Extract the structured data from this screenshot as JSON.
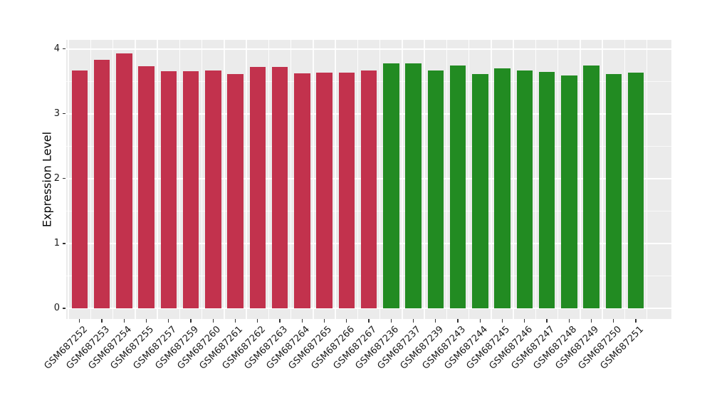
{
  "chart_data": {
    "type": "bar",
    "ylabel": "Expression Level",
    "xlabel": "",
    "ylim": [
      -0.165,
      4.138
    ],
    "yticks": [
      0,
      1,
      2,
      3,
      4
    ],
    "minor_yticks": [
      0.5,
      1.5,
      2.5,
      3.5
    ],
    "grid": "white major and minor gridlines on gray panel, vertical lines between categories",
    "legend": "none",
    "bar_width_ratio": 0.72,
    "colors": {
      "panel_bg": "#EBEBEB",
      "grid_major": "#FFFFFF",
      "tick_mark": "#333333",
      "axis_text": "#1a1a1a",
      "group1": "#C2324D",
      "group2": "#228B22"
    },
    "groups": [
      {
        "name": "group1",
        "color": "#C2324D",
        "bars": [
          {
            "label": "GSM687252",
            "value": 3.67
          },
          {
            "label": "GSM687253",
            "value": 3.83
          },
          {
            "label": "GSM687254",
            "value": 3.93
          },
          {
            "label": "GSM687255",
            "value": 3.73
          },
          {
            "label": "GSM687257",
            "value": 3.66
          },
          {
            "label": "GSM687259",
            "value": 3.65
          },
          {
            "label": "GSM687260",
            "value": 3.67
          },
          {
            "label": "GSM687261",
            "value": 3.61
          },
          {
            "label": "GSM687262",
            "value": 3.72
          },
          {
            "label": "GSM687263",
            "value": 3.72
          },
          {
            "label": "GSM687264",
            "value": 3.62
          },
          {
            "label": "GSM687265",
            "value": 3.63
          },
          {
            "label": "GSM687266",
            "value": 3.63
          },
          {
            "label": "GSM687267",
            "value": 3.67
          }
        ]
      },
      {
        "name": "group2",
        "color": "#228B22",
        "bars": [
          {
            "label": "GSM687236",
            "value": 3.78
          },
          {
            "label": "GSM687237",
            "value": 3.78
          },
          {
            "label": "GSM687239",
            "value": 3.67
          },
          {
            "label": "GSM687243",
            "value": 3.74
          },
          {
            "label": "GSM687244",
            "value": 3.61
          },
          {
            "label": "GSM687245",
            "value": 3.7
          },
          {
            "label": "GSM687246",
            "value": 3.67
          },
          {
            "label": "GSM687247",
            "value": 3.64
          },
          {
            "label": "GSM687248",
            "value": 3.59
          },
          {
            "label": "GSM687249",
            "value": 3.74
          },
          {
            "label": "GSM687250",
            "value": 3.61
          },
          {
            "label": "GSM687251",
            "value": 3.63
          }
        ]
      }
    ]
  }
}
